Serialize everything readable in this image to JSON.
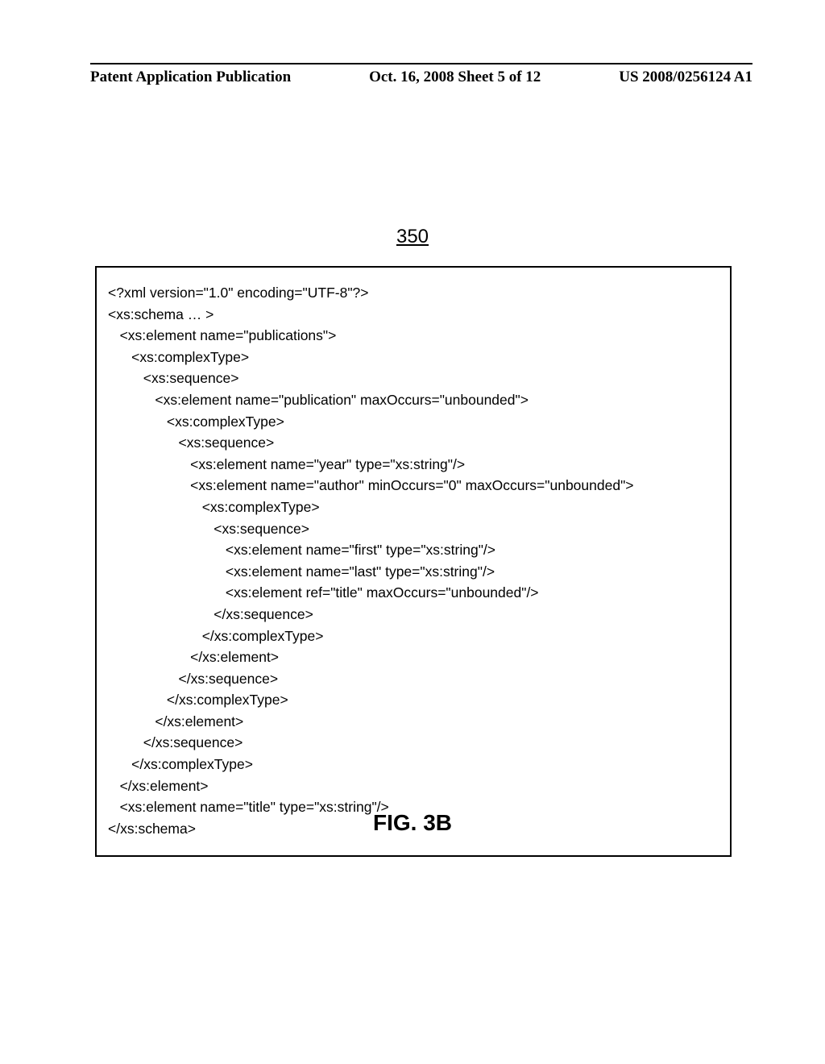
{
  "header": {
    "left": "Patent Application Publication",
    "center": "Oct. 16, 2008  Sheet 5 of 12",
    "right": "US 2008/0256124 A1"
  },
  "figure_ref": "350",
  "code_lines": [
    "<?xml version=\"1.0\" encoding=\"UTF-8\"?>",
    "<xs:schema … >",
    "   <xs:element name=\"publications\">",
    "      <xs:complexType>",
    "         <xs:sequence>",
    "            <xs:element name=\"publication\" maxOccurs=\"unbounded\">",
    "               <xs:complexType>",
    "                  <xs:sequence>",
    "                     <xs:element name=\"year\" type=\"xs:string\"/>",
    "                     <xs:element name=\"author\" minOccurs=\"0\" maxOccurs=\"unbounded\">",
    "                        <xs:complexType>",
    "                           <xs:sequence>",
    "                              <xs:element name=\"first\" type=\"xs:string\"/>",
    "                              <xs:element name=\"last\" type=\"xs:string\"/>",
    "                              <xs:element ref=\"title\" maxOccurs=\"unbounded\"/>",
    "                           </xs:sequence>",
    "                        </xs:complexType>",
    "                     </xs:element>",
    "                  </xs:sequence>",
    "               </xs:complexType>",
    "            </xs:element>",
    "         </xs:sequence>",
    "      </xs:complexType>",
    "   </xs:element>",
    "   <xs:element name=\"title\" type=\"xs:string\"/>",
    "</xs:schema>"
  ],
  "figure_label": "FIG. 3B"
}
